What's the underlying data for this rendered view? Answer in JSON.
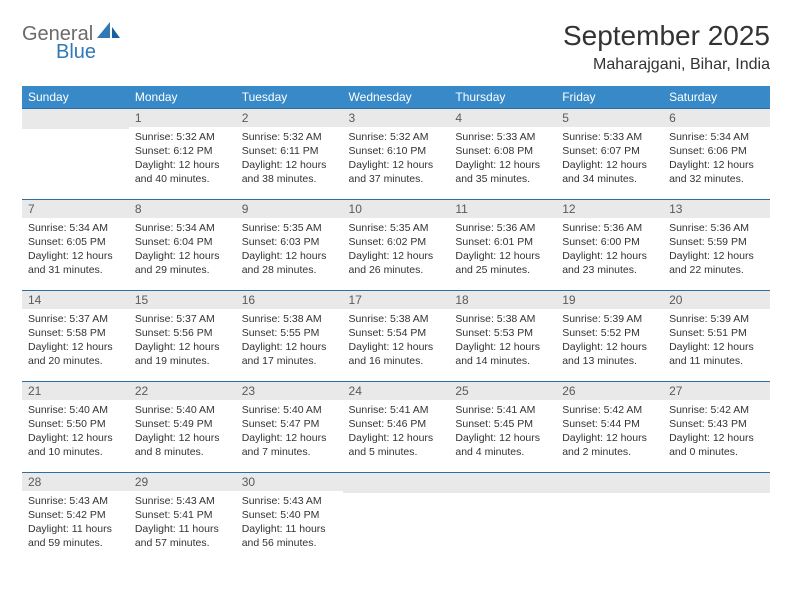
{
  "brand": {
    "general": "General",
    "blue": "Blue"
  },
  "title": "September 2025",
  "location": "Maharajgani, Bihar, India",
  "colors": {
    "header_bg": "#3789c7",
    "header_text": "#ffffff",
    "daynum_bg": "#e9e9e9",
    "daynum_text": "#5a5a5a",
    "rule": "#2f6ea0",
    "body_text": "#333333",
    "logo_gray": "#6a6a6a",
    "logo_blue": "#2f79b6"
  },
  "weekdays": [
    "Sunday",
    "Monday",
    "Tuesday",
    "Wednesday",
    "Thursday",
    "Friday",
    "Saturday"
  ],
  "weeks": [
    [
      null,
      {
        "n": "1",
        "sr": "Sunrise: 5:32 AM",
        "ss": "Sunset: 6:12 PM",
        "d1": "Daylight: 12 hours",
        "d2": "and 40 minutes."
      },
      {
        "n": "2",
        "sr": "Sunrise: 5:32 AM",
        "ss": "Sunset: 6:11 PM",
        "d1": "Daylight: 12 hours",
        "d2": "and 38 minutes."
      },
      {
        "n": "3",
        "sr": "Sunrise: 5:32 AM",
        "ss": "Sunset: 6:10 PM",
        "d1": "Daylight: 12 hours",
        "d2": "and 37 minutes."
      },
      {
        "n": "4",
        "sr": "Sunrise: 5:33 AM",
        "ss": "Sunset: 6:08 PM",
        "d1": "Daylight: 12 hours",
        "d2": "and 35 minutes."
      },
      {
        "n": "5",
        "sr": "Sunrise: 5:33 AM",
        "ss": "Sunset: 6:07 PM",
        "d1": "Daylight: 12 hours",
        "d2": "and 34 minutes."
      },
      {
        "n": "6",
        "sr": "Sunrise: 5:34 AM",
        "ss": "Sunset: 6:06 PM",
        "d1": "Daylight: 12 hours",
        "d2": "and 32 minutes."
      }
    ],
    [
      {
        "n": "7",
        "sr": "Sunrise: 5:34 AM",
        "ss": "Sunset: 6:05 PM",
        "d1": "Daylight: 12 hours",
        "d2": "and 31 minutes."
      },
      {
        "n": "8",
        "sr": "Sunrise: 5:34 AM",
        "ss": "Sunset: 6:04 PM",
        "d1": "Daylight: 12 hours",
        "d2": "and 29 minutes."
      },
      {
        "n": "9",
        "sr": "Sunrise: 5:35 AM",
        "ss": "Sunset: 6:03 PM",
        "d1": "Daylight: 12 hours",
        "d2": "and 28 minutes."
      },
      {
        "n": "10",
        "sr": "Sunrise: 5:35 AM",
        "ss": "Sunset: 6:02 PM",
        "d1": "Daylight: 12 hours",
        "d2": "and 26 minutes."
      },
      {
        "n": "11",
        "sr": "Sunrise: 5:36 AM",
        "ss": "Sunset: 6:01 PM",
        "d1": "Daylight: 12 hours",
        "d2": "and 25 minutes."
      },
      {
        "n": "12",
        "sr": "Sunrise: 5:36 AM",
        "ss": "Sunset: 6:00 PM",
        "d1": "Daylight: 12 hours",
        "d2": "and 23 minutes."
      },
      {
        "n": "13",
        "sr": "Sunrise: 5:36 AM",
        "ss": "Sunset: 5:59 PM",
        "d1": "Daylight: 12 hours",
        "d2": "and 22 minutes."
      }
    ],
    [
      {
        "n": "14",
        "sr": "Sunrise: 5:37 AM",
        "ss": "Sunset: 5:58 PM",
        "d1": "Daylight: 12 hours",
        "d2": "and 20 minutes."
      },
      {
        "n": "15",
        "sr": "Sunrise: 5:37 AM",
        "ss": "Sunset: 5:56 PM",
        "d1": "Daylight: 12 hours",
        "d2": "and 19 minutes."
      },
      {
        "n": "16",
        "sr": "Sunrise: 5:38 AM",
        "ss": "Sunset: 5:55 PM",
        "d1": "Daylight: 12 hours",
        "d2": "and 17 minutes."
      },
      {
        "n": "17",
        "sr": "Sunrise: 5:38 AM",
        "ss": "Sunset: 5:54 PM",
        "d1": "Daylight: 12 hours",
        "d2": "and 16 minutes."
      },
      {
        "n": "18",
        "sr": "Sunrise: 5:38 AM",
        "ss": "Sunset: 5:53 PM",
        "d1": "Daylight: 12 hours",
        "d2": "and 14 minutes."
      },
      {
        "n": "19",
        "sr": "Sunrise: 5:39 AM",
        "ss": "Sunset: 5:52 PM",
        "d1": "Daylight: 12 hours",
        "d2": "and 13 minutes."
      },
      {
        "n": "20",
        "sr": "Sunrise: 5:39 AM",
        "ss": "Sunset: 5:51 PM",
        "d1": "Daylight: 12 hours",
        "d2": "and 11 minutes."
      }
    ],
    [
      {
        "n": "21",
        "sr": "Sunrise: 5:40 AM",
        "ss": "Sunset: 5:50 PM",
        "d1": "Daylight: 12 hours",
        "d2": "and 10 minutes."
      },
      {
        "n": "22",
        "sr": "Sunrise: 5:40 AM",
        "ss": "Sunset: 5:49 PM",
        "d1": "Daylight: 12 hours",
        "d2": "and 8 minutes."
      },
      {
        "n": "23",
        "sr": "Sunrise: 5:40 AM",
        "ss": "Sunset: 5:47 PM",
        "d1": "Daylight: 12 hours",
        "d2": "and 7 minutes."
      },
      {
        "n": "24",
        "sr": "Sunrise: 5:41 AM",
        "ss": "Sunset: 5:46 PM",
        "d1": "Daylight: 12 hours",
        "d2": "and 5 minutes."
      },
      {
        "n": "25",
        "sr": "Sunrise: 5:41 AM",
        "ss": "Sunset: 5:45 PM",
        "d1": "Daylight: 12 hours",
        "d2": "and 4 minutes."
      },
      {
        "n": "26",
        "sr": "Sunrise: 5:42 AM",
        "ss": "Sunset: 5:44 PM",
        "d1": "Daylight: 12 hours",
        "d2": "and 2 minutes."
      },
      {
        "n": "27",
        "sr": "Sunrise: 5:42 AM",
        "ss": "Sunset: 5:43 PM",
        "d1": "Daylight: 12 hours",
        "d2": "and 0 minutes."
      }
    ],
    [
      {
        "n": "28",
        "sr": "Sunrise: 5:43 AM",
        "ss": "Sunset: 5:42 PM",
        "d1": "Daylight: 11 hours",
        "d2": "and 59 minutes."
      },
      {
        "n": "29",
        "sr": "Sunrise: 5:43 AM",
        "ss": "Sunset: 5:41 PM",
        "d1": "Daylight: 11 hours",
        "d2": "and 57 minutes."
      },
      {
        "n": "30",
        "sr": "Sunrise: 5:43 AM",
        "ss": "Sunset: 5:40 PM",
        "d1": "Daylight: 11 hours",
        "d2": "and 56 minutes."
      },
      null,
      null,
      null,
      null
    ]
  ]
}
